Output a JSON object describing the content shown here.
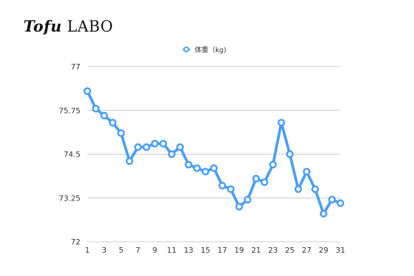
{
  "logo": {
    "part1": "Tofu",
    "part2": "LABO"
  },
  "chart_data": {
    "type": "line",
    "title": "",
    "xlabel": "",
    "ylabel": "",
    "x": [
      1,
      2,
      3,
      4,
      5,
      6,
      7,
      8,
      9,
      10,
      11,
      12,
      13,
      14,
      15,
      16,
      17,
      18,
      19,
      20,
      21,
      22,
      23,
      24,
      25,
      26,
      27,
      28,
      29,
      30,
      31
    ],
    "series": [
      {
        "name": "体重（kg)",
        "color": "#4a9ff5",
        "values": [
          76.3,
          75.8,
          75.6,
          75.4,
          75.1,
          74.3,
          74.7,
          74.7,
          74.8,
          74.8,
          74.5,
          74.7,
          74.2,
          74.1,
          74.0,
          74.1,
          73.6,
          73.5,
          73.0,
          73.2,
          73.8,
          73.7,
          74.2,
          75.4,
          74.5,
          73.5,
          74.0,
          73.5,
          72.8,
          73.2,
          73.1
        ]
      }
    ],
    "ylim": [
      72,
      77
    ],
    "yticks": [
      "72",
      "73.25",
      "74.5",
      "75.75",
      "77"
    ],
    "xticks": [
      "1",
      "3",
      "5",
      "7",
      "9",
      "11",
      "13",
      "15",
      "17",
      "19",
      "21",
      "23",
      "25",
      "27",
      "29",
      "31"
    ],
    "grid": "horizontal",
    "legend": "top-center"
  }
}
